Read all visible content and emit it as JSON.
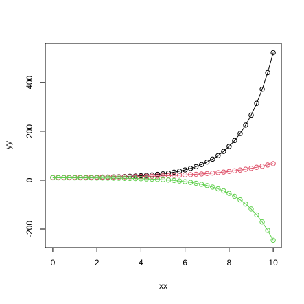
{
  "chart_data": {
    "type": "line",
    "x_label": "xx",
    "y_label": "yy",
    "x": [
      0,
      0.25,
      0.5,
      0.75,
      1,
      1.25,
      1.5,
      1.75,
      2,
      2.25,
      2.5,
      2.75,
      3,
      3.25,
      3.5,
      3.75,
      4,
      4.25,
      4.5,
      4.75,
      5,
      5.25,
      5.5,
      5.75,
      6,
      6.25,
      6.5,
      6.75,
      7,
      7.25,
      7.5,
      7.75,
      8,
      8.25,
      8.5,
      8.75,
      9,
      9.25,
      9.5,
      9.75,
      10
    ],
    "series": [
      {
        "color": "#000000",
        "values": [
          10.5,
          10.6,
          10.7,
          10.8,
          11,
          11.2,
          11.4,
          11.7,
          12,
          12.4,
          12.8,
          13.4,
          14,
          14.8,
          15.7,
          16.7,
          18,
          19.5,
          21.3,
          23.5,
          26,
          29,
          32.6,
          36.9,
          42,
          48.1,
          55.3,
          63.8,
          74,
          86.1,
          100.5,
          117.6,
          138,
          162.2,
          191,
          225.3,
          266,
          314.4,
          372,
          440.5,
          522
        ]
      },
      {
        "color": "#DF536B",
        "values": [
          11,
          11.1,
          11.2,
          11.4,
          11.5,
          11.7,
          11.8,
          12,
          12.3,
          12.5,
          12.8,
          13.1,
          13.4,
          13.7,
          14.1,
          14.6,
          15.1,
          15.6,
          16.2,
          16.9,
          17.6,
          18.4,
          19.3,
          20.3,
          21.4,
          22.6,
          24,
          25.4,
          27.1,
          28.9,
          30.9,
          33.2,
          35.6,
          38.4,
          41.4,
          44.7,
          48.4,
          52.6,
          57.1,
          62.1,
          67.7
        ]
      },
      {
        "color": "#61D04F",
        "values": [
          9.8,
          9.7,
          9.7,
          9.6,
          9.5,
          9.4,
          9.3,
          9.2,
          9,
          8.8,
          8.6,
          8.3,
          8,
          7.6,
          7.2,
          6.6,
          6,
          5.2,
          4.3,
          3.3,
          2,
          0.5,
          -1.3,
          -3.5,
          -6,
          -9,
          -12.6,
          -16.9,
          -22,
          -28.1,
          -35.3,
          -43.8,
          -54,
          -66.1,
          -80.5,
          -97.6,
          -118,
          -142.2,
          -171,
          -205.3,
          -246
        ]
      }
    ],
    "xlim": [
      -0.34,
      10.37
    ],
    "xticks": [
      0,
      2,
      4,
      6,
      8,
      10
    ],
    "ylim": [
      -276,
      560
    ],
    "yticks": [
      -200,
      0,
      200,
      400
    ],
    "markers": "open-circle"
  }
}
